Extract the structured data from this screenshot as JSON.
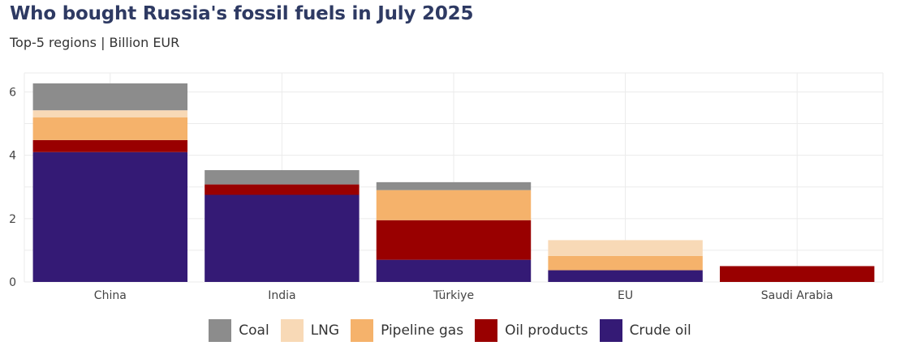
{
  "title": "Who bought Russia's fossil fuels in July 2025",
  "subtitle": "Top-5 regions | Billion EUR",
  "chart_data": {
    "type": "bar",
    "stacked": true,
    "title": "Who bought Russia's fossil fuels in July 2025",
    "subtitle": "Top-5 regions | Billion EUR",
    "categories": [
      "China",
      "India",
      "Türkiye",
      "EU",
      "Saudi Arabia"
    ],
    "series": [
      {
        "name": "Crude oil",
        "color": "#341a75",
        "values": [
          4.1,
          2.75,
          0.7,
          0.37,
          0
        ]
      },
      {
        "name": "Oil products",
        "color": "#990000",
        "values": [
          0.38,
          0.33,
          1.25,
          0,
          0.5
        ]
      },
      {
        "name": "Pipeline gas",
        "color": "#f5b26b",
        "values": [
          0.72,
          0,
          0.95,
          0.45,
          0
        ]
      },
      {
        "name": "LNG",
        "color": "#f8d9b6",
        "values": [
          0.22,
          0,
          0,
          0.5,
          0
        ]
      },
      {
        "name": "Coal",
        "color": "#8c8c8c",
        "values": [
          0.85,
          0.45,
          0.25,
          0,
          0
        ]
      }
    ],
    "legend_order": [
      "Coal",
      "LNG",
      "Pipeline gas",
      "Oil products",
      "Crude oil"
    ],
    "ylim": [
      0,
      6.6
    ],
    "yticks": [
      0,
      2,
      4,
      6
    ],
    "xlabel": "",
    "ylabel": "",
    "grid": true,
    "legend_position": "bottom"
  }
}
